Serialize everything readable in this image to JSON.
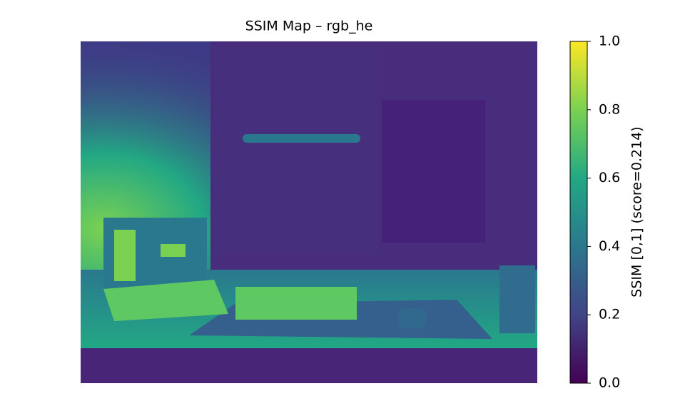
{
  "chart_data": {
    "type": "heatmap",
    "title": "SSIM Map – rgb_he",
    "colorbar_label": "SSIM [0,1] (score=0.214)",
    "clim": [
      0,
      1
    ],
    "cticks": [
      {
        "value": 0,
        "label": "0.0"
      },
      0.2,
      0.4,
      0.6,
      0.8,
      {
        "value": 1,
        "label": "1.0"
      }
    ],
    "colormap": [
      "#440154",
      "#414487",
      "#2a788e",
      "#22a884",
      "#7ad151",
      "#fde725"
    ]
  }
}
